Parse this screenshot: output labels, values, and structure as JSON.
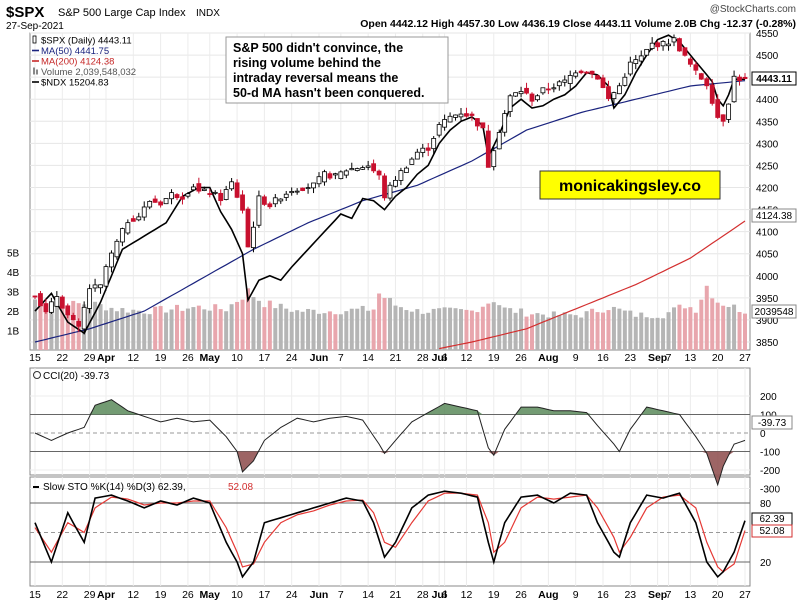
{
  "header": {
    "symbol": "$SPX",
    "index_name": "S&P 500 Large Cap Index",
    "exchange": "INDX",
    "date": "27-Sep-2021",
    "watermark": "@StockCharts.com",
    "ohlc": "Open 4442.12  High 4457.30  Low 4436.19  Close 4443.11  Volume 2.0B  Chg -12.37 (-0.28%)"
  },
  "legend": [
    {
      "text": "$SPX (Daily) 4443.11",
      "color": "#000000",
      "icon": "candle-icon"
    },
    {
      "text": "MA(50) 4441.75",
      "color": "#1a237e",
      "icon": "line-icon"
    },
    {
      "text": "MA(200) 4124.38",
      "color": "#c62828",
      "icon": "line-icon"
    },
    {
      "text": "Volume 2,039,548,032",
      "color": "#555555",
      "icon": "bar-icon"
    },
    {
      "text": "$NDX 15204.83",
      "color": "#000000",
      "icon": "line-icon"
    }
  ],
  "annotation": {
    "lines": [
      "S&P 500 didn't convince, the",
      "rising volume behind the",
      "intraday reversal means the",
      "50-d MA hasn't been conquered."
    ]
  },
  "brand": "monicakingsley.co",
  "colors": {
    "up": "#ffffff",
    "down": "#c8102e",
    "ma50": "#1a237e",
    "ma200": "#d32f2f",
    "vol_up": "#b5b5b5",
    "vol_down": "#e8a6ad",
    "cci_fill": "#5a8a5a",
    "cci_fill_neg": "#8c4a4a",
    "brand_bg": "#ffff00"
  },
  "x_ticks": [
    {
      "label": "15",
      "idx": 0
    },
    {
      "label": "22",
      "idx": 5
    },
    {
      "label": "29",
      "idx": 10
    },
    {
      "label": "Apr",
      "idx": 13,
      "bold": true
    },
    {
      "label": "12",
      "idx": 18
    },
    {
      "label": "19",
      "idx": 23
    },
    {
      "label": "26",
      "idx": 28
    },
    {
      "label": "May",
      "idx": 32,
      "bold": true
    },
    {
      "label": "10",
      "idx": 37
    },
    {
      "label": "17",
      "idx": 42
    },
    {
      "label": "24",
      "idx": 47
    },
    {
      "label": "Jun",
      "idx": 52,
      "bold": true
    },
    {
      "label": "7",
      "idx": 56
    },
    {
      "label": "14",
      "idx": 61
    },
    {
      "label": "21",
      "idx": 66
    },
    {
      "label": "28",
      "idx": 71
    },
    {
      "label": "Jul",
      "idx": 74,
      "bold": true
    },
    {
      "label": "6",
      "idx": 75
    },
    {
      "label": "12",
      "idx": 79
    },
    {
      "label": "19",
      "idx": 84
    },
    {
      "label": "26",
      "idx": 89
    },
    {
      "label": "Aug",
      "idx": 94,
      "bold": true
    },
    {
      "label": "9",
      "idx": 99
    },
    {
      "label": "16",
      "idx": 104
    },
    {
      "label": "23",
      "idx": 109
    },
    {
      "label": "Sep",
      "idx": 114,
      "bold": true
    },
    {
      "label": "7",
      "idx": 116
    },
    {
      "label": "13",
      "idx": 120
    },
    {
      "label": "20",
      "idx": 125
    },
    {
      "label": "27",
      "idx": 130
    }
  ],
  "panels": {
    "cci": {
      "label": "CCI(20) -39.73",
      "value_tag": "-39.73",
      "ticks": [
        "200",
        "100",
        "0",
        "-100",
        "-200",
        "-300"
      ]
    },
    "sto": {
      "label_a": "Slow STO %K(14) %D(3) 62.39,",
      "label_b": "52.08",
      "tag_k": "62.39",
      "tag_d": "52.08",
      "ticks": [
        "80",
        "50",
        "20"
      ]
    }
  },
  "price_ticks": [
    "4550",
    "4500",
    "4450",
    "4400",
    "4350",
    "4300",
    "4250",
    "4200",
    "4150",
    "4100",
    "4050",
    "4000",
    "3950",
    "3900",
    "3850"
  ],
  "volume_ticks": [
    "5B",
    "4B",
    "3B",
    "2B",
    "1B"
  ],
  "price_tags": {
    "close": "4443.11",
    "ma200": "4124.38",
    "volume": "2039548"
  },
  "chart_data": {
    "type": "candlestick",
    "title": "$SPX S&P 500 Large Cap Index INDX",
    "x_start": "2021-03-15",
    "x_end": "2021-09-27",
    "ylim": [
      3830,
      4570
    ],
    "anchors_close": [
      [
        0,
        3960
      ],
      [
        2,
        3915
      ],
      [
        4,
        3955
      ],
      [
        6,
        3910
      ],
      [
        8,
        3880
      ],
      [
        10,
        3972
      ],
      [
        12,
        3975
      ],
      [
        13,
        4020
      ],
      [
        15,
        4075
      ],
      [
        17,
        4125
      ],
      [
        19,
        4135
      ],
      [
        21,
        4170
      ],
      [
        23,
        4165
      ],
      [
        25,
        4185
      ],
      [
        27,
        4180
      ],
      [
        29,
        4205
      ],
      [
        30,
        4190
      ],
      [
        32,
        4190
      ],
      [
        34,
        4175
      ],
      [
        36,
        4210
      ],
      [
        38,
        4150
      ],
      [
        39,
        4065
      ],
      [
        40,
        4115
      ],
      [
        41,
        4175
      ],
      [
        43,
        4160
      ],
      [
        45,
        4180
      ],
      [
        47,
        4195
      ],
      [
        49,
        4200
      ],
      [
        51,
        4205
      ],
      [
        53,
        4230
      ],
      [
        55,
        4225
      ],
      [
        57,
        4240
      ],
      [
        59,
        4245
      ],
      [
        61,
        4250
      ],
      [
        63,
        4225
      ],
      [
        64,
        4180
      ],
      [
        66,
        4220
      ],
      [
        68,
        4250
      ],
      [
        70,
        4280
      ],
      [
        72,
        4290
      ],
      [
        74,
        4340
      ],
      [
        76,
        4360
      ],
      [
        78,
        4370
      ],
      [
        80,
        4360
      ],
      [
        82,
        4330
      ],
      [
        83,
        4250
      ],
      [
        85,
        4330
      ],
      [
        87,
        4405
      ],
      [
        89,
        4420
      ],
      [
        91,
        4400
      ],
      [
        93,
        4420
      ],
      [
        95,
        4430
      ],
      [
        97,
        4440
      ],
      [
        99,
        4465
      ],
      [
        101,
        4465
      ],
      [
        103,
        4450
      ],
      [
        105,
        4400
      ],
      [
        107,
        4430
      ],
      [
        109,
        4480
      ],
      [
        111,
        4495
      ],
      [
        113,
        4525
      ],
      [
        115,
        4525
      ],
      [
        117,
        4535
      ],
      [
        119,
        4495
      ],
      [
        121,
        4460
      ],
      [
        123,
        4435
      ],
      [
        125,
        4360
      ],
      [
        126,
        4355
      ],
      [
        127,
        4395
      ],
      [
        128,
        4450
      ],
      [
        130,
        4443
      ]
    ],
    "ma50_anchors": [
      [
        0,
        3850
      ],
      [
        10,
        3880
      ],
      [
        20,
        3920
      ],
      [
        30,
        3990
      ],
      [
        40,
        4060
      ],
      [
        50,
        4120
      ],
      [
        60,
        4170
      ],
      [
        70,
        4205
      ],
      [
        80,
        4260
      ],
      [
        90,
        4330
      ],
      [
        100,
        4370
      ],
      [
        110,
        4400
      ],
      [
        120,
        4430
      ],
      [
        130,
        4442
      ]
    ],
    "ma200_anchors": [
      [
        74,
        3835
      ],
      [
        80,
        3850
      ],
      [
        90,
        3880
      ],
      [
        100,
        3930
      ],
      [
        110,
        3980
      ],
      [
        120,
        4040
      ],
      [
        130,
        4124
      ]
    ],
    "ndx_anchors": [
      [
        0,
        3920
      ],
      [
        3,
        3960
      ],
      [
        6,
        3895
      ],
      [
        9,
        3870
      ],
      [
        12,
        3940
      ],
      [
        16,
        4060
      ],
      [
        20,
        4090
      ],
      [
        24,
        4120
      ],
      [
        27,
        4180
      ],
      [
        30,
        4200
      ],
      [
        32,
        4200
      ],
      [
        34,
        4145
      ],
      [
        36,
        4105
      ],
      [
        38,
        4050
      ],
      [
        39,
        3945
      ],
      [
        41,
        3990
      ],
      [
        43,
        4000
      ],
      [
        45,
        3990
      ],
      [
        47,
        4020
      ],
      [
        50,
        4060
      ],
      [
        53,
        4100
      ],
      [
        56,
        4140
      ],
      [
        58,
        4130
      ],
      [
        60,
        4175
      ],
      [
        62,
        4170
      ],
      [
        64,
        4150
      ],
      [
        66,
        4180
      ],
      [
        68,
        4200
      ],
      [
        70,
        4230
      ],
      [
        72,
        4250
      ],
      [
        74,
        4300
      ],
      [
        76,
        4330
      ],
      [
        78,
        4350
      ],
      [
        80,
        4360
      ],
      [
        82,
        4340
      ],
      [
        83,
        4270
      ],
      [
        85,
        4320
      ],
      [
        87,
        4380
      ],
      [
        89,
        4400
      ],
      [
        91,
        4380
      ],
      [
        93,
        4385
      ],
      [
        95,
        4400
      ],
      [
        97,
        4410
      ],
      [
        99,
        4430
      ],
      [
        101,
        4460
      ],
      [
        103,
        4455
      ],
      [
        105,
        4430
      ],
      [
        106,
        4380
      ],
      [
        108,
        4410
      ],
      [
        110,
        4460
      ],
      [
        112,
        4500
      ],
      [
        114,
        4535
      ],
      [
        116,
        4545
      ],
      [
        118,
        4530
      ],
      [
        120,
        4500
      ],
      [
        122,
        4470
      ],
      [
        124,
        4440
      ],
      [
        125,
        4400
      ],
      [
        126,
        4385
      ],
      [
        127,
        4410
      ],
      [
        128,
        4445
      ],
      [
        130,
        4445
      ]
    ],
    "volume_anchors": [
      [
        0,
        2.6
      ],
      [
        5,
        2.3
      ],
      [
        10,
        2.4
      ],
      [
        15,
        2.1
      ],
      [
        20,
        2.0
      ],
      [
        25,
        2.1
      ],
      [
        30,
        2.2
      ],
      [
        35,
        2.1
      ],
      [
        39,
        3.0
      ],
      [
        42,
        2.4
      ],
      [
        48,
        2.0
      ],
      [
        55,
        2.0
      ],
      [
        62,
        2.1
      ],
      [
        63,
        2.9
      ],
      [
        66,
        2.3
      ],
      [
        70,
        2.0
      ],
      [
        75,
        2.0
      ],
      [
        80,
        2.0
      ],
      [
        84,
        2.6
      ],
      [
        86,
        2.1
      ],
      [
        90,
        1.9
      ],
      [
        95,
        1.8
      ],
      [
        100,
        1.8
      ],
      [
        105,
        2.2
      ],
      [
        110,
        1.8
      ],
      [
        115,
        1.8
      ],
      [
        119,
        2.3
      ],
      [
        121,
        2.1
      ],
      [
        123,
        3.3
      ],
      [
        125,
        2.5
      ],
      [
        128,
        2.2
      ],
      [
        130,
        2.0
      ]
    ],
    "cci_anchors": [
      [
        0,
        0
      ],
      [
        3,
        -40
      ],
      [
        6,
        0
      ],
      [
        9,
        30
      ],
      [
        11,
        150
      ],
      [
        14,
        180
      ],
      [
        17,
        120
      ],
      [
        20,
        90
      ],
      [
        23,
        60
      ],
      [
        26,
        80
      ],
      [
        29,
        60
      ],
      [
        32,
        70
      ],
      [
        35,
        -20
      ],
      [
        37,
        -100
      ],
      [
        38,
        -210
      ],
      [
        40,
        -150
      ],
      [
        42,
        -40
      ],
      [
        45,
        30
      ],
      [
        48,
        80
      ],
      [
        51,
        60
      ],
      [
        54,
        80
      ],
      [
        57,
        90
      ],
      [
        60,
        70
      ],
      [
        63,
        -60
      ],
      [
        64,
        -110
      ],
      [
        66,
        -40
      ],
      [
        69,
        60
      ],
      [
        72,
        110
      ],
      [
        75,
        160
      ],
      [
        78,
        140
      ],
      [
        81,
        120
      ],
      [
        83,
        -80
      ],
      [
        84,
        -120
      ],
      [
        86,
        20
      ],
      [
        89,
        140
      ],
      [
        92,
        140
      ],
      [
        95,
        120
      ],
      [
        98,
        120
      ],
      [
        101,
        110
      ],
      [
        103,
        40
      ],
      [
        106,
        -60
      ],
      [
        107,
        -100
      ],
      [
        109,
        20
      ],
      [
        112,
        140
      ],
      [
        115,
        120
      ],
      [
        118,
        100
      ],
      [
        121,
        -20
      ],
      [
        123,
        -110
      ],
      [
        125,
        -280
      ],
      [
        126,
        -180
      ],
      [
        128,
        -60
      ],
      [
        130,
        -40
      ]
    ],
    "sto_k_anchors": [
      [
        0,
        60
      ],
      [
        3,
        20
      ],
      [
        6,
        70
      ],
      [
        9,
        40
      ],
      [
        11,
        85
      ],
      [
        14,
        88
      ],
      [
        17,
        82
      ],
      [
        20,
        75
      ],
      [
        23,
        82
      ],
      [
        26,
        78
      ],
      [
        29,
        85
      ],
      [
        32,
        80
      ],
      [
        35,
        40
      ],
      [
        37,
        20
      ],
      [
        38,
        5
      ],
      [
        40,
        20
      ],
      [
        42,
        60
      ],
      [
        45,
        65
      ],
      [
        48,
        70
      ],
      [
        51,
        75
      ],
      [
        54,
        80
      ],
      [
        57,
        85
      ],
      [
        60,
        82
      ],
      [
        62,
        60
      ],
      [
        64,
        25
      ],
      [
        66,
        40
      ],
      [
        69,
        75
      ],
      [
        72,
        88
      ],
      [
        75,
        92
      ],
      [
        78,
        90
      ],
      [
        81,
        86
      ],
      [
        83,
        40
      ],
      [
        84,
        20
      ],
      [
        86,
        60
      ],
      [
        89,
        86
      ],
      [
        92,
        88
      ],
      [
        95,
        80
      ],
      [
        98,
        90
      ],
      [
        101,
        88
      ],
      [
        103,
        60
      ],
      [
        106,
        30
      ],
      [
        107,
        25
      ],
      [
        109,
        60
      ],
      [
        112,
        88
      ],
      [
        115,
        85
      ],
      [
        118,
        90
      ],
      [
        121,
        60
      ],
      [
        123,
        20
      ],
      [
        125,
        5
      ],
      [
        126,
        10
      ],
      [
        128,
        30
      ],
      [
        130,
        62
      ]
    ],
    "sto_d_anchors": [
      [
        0,
        55
      ],
      [
        3,
        30
      ],
      [
        6,
        60
      ],
      [
        9,
        50
      ],
      [
        11,
        75
      ],
      [
        14,
        86
      ],
      [
        17,
        84
      ],
      [
        20,
        78
      ],
      [
        23,
        80
      ],
      [
        26,
        80
      ],
      [
        29,
        82
      ],
      [
        32,
        82
      ],
      [
        35,
        55
      ],
      [
        37,
        30
      ],
      [
        38,
        15
      ],
      [
        40,
        18
      ],
      [
        42,
        40
      ],
      [
        45,
        60
      ],
      [
        48,
        68
      ],
      [
        51,
        72
      ],
      [
        54,
        78
      ],
      [
        57,
        82
      ],
      [
        60,
        83
      ],
      [
        62,
        70
      ],
      [
        64,
        40
      ],
      [
        66,
        35
      ],
      [
        69,
        60
      ],
      [
        72,
        82
      ],
      [
        75,
        90
      ],
      [
        78,
        90
      ],
      [
        81,
        88
      ],
      [
        83,
        60
      ],
      [
        84,
        30
      ],
      [
        86,
        40
      ],
      [
        89,
        75
      ],
      [
        92,
        86
      ],
      [
        95,
        84
      ],
      [
        98,
        86
      ],
      [
        101,
        88
      ],
      [
        103,
        75
      ],
      [
        106,
        45
      ],
      [
        107,
        30
      ],
      [
        109,
        45
      ],
      [
        112,
        75
      ],
      [
        115,
        86
      ],
      [
        118,
        88
      ],
      [
        121,
        75
      ],
      [
        123,
        40
      ],
      [
        125,
        15
      ],
      [
        126,
        10
      ],
      [
        128,
        18
      ],
      [
        130,
        52
      ]
    ]
  }
}
